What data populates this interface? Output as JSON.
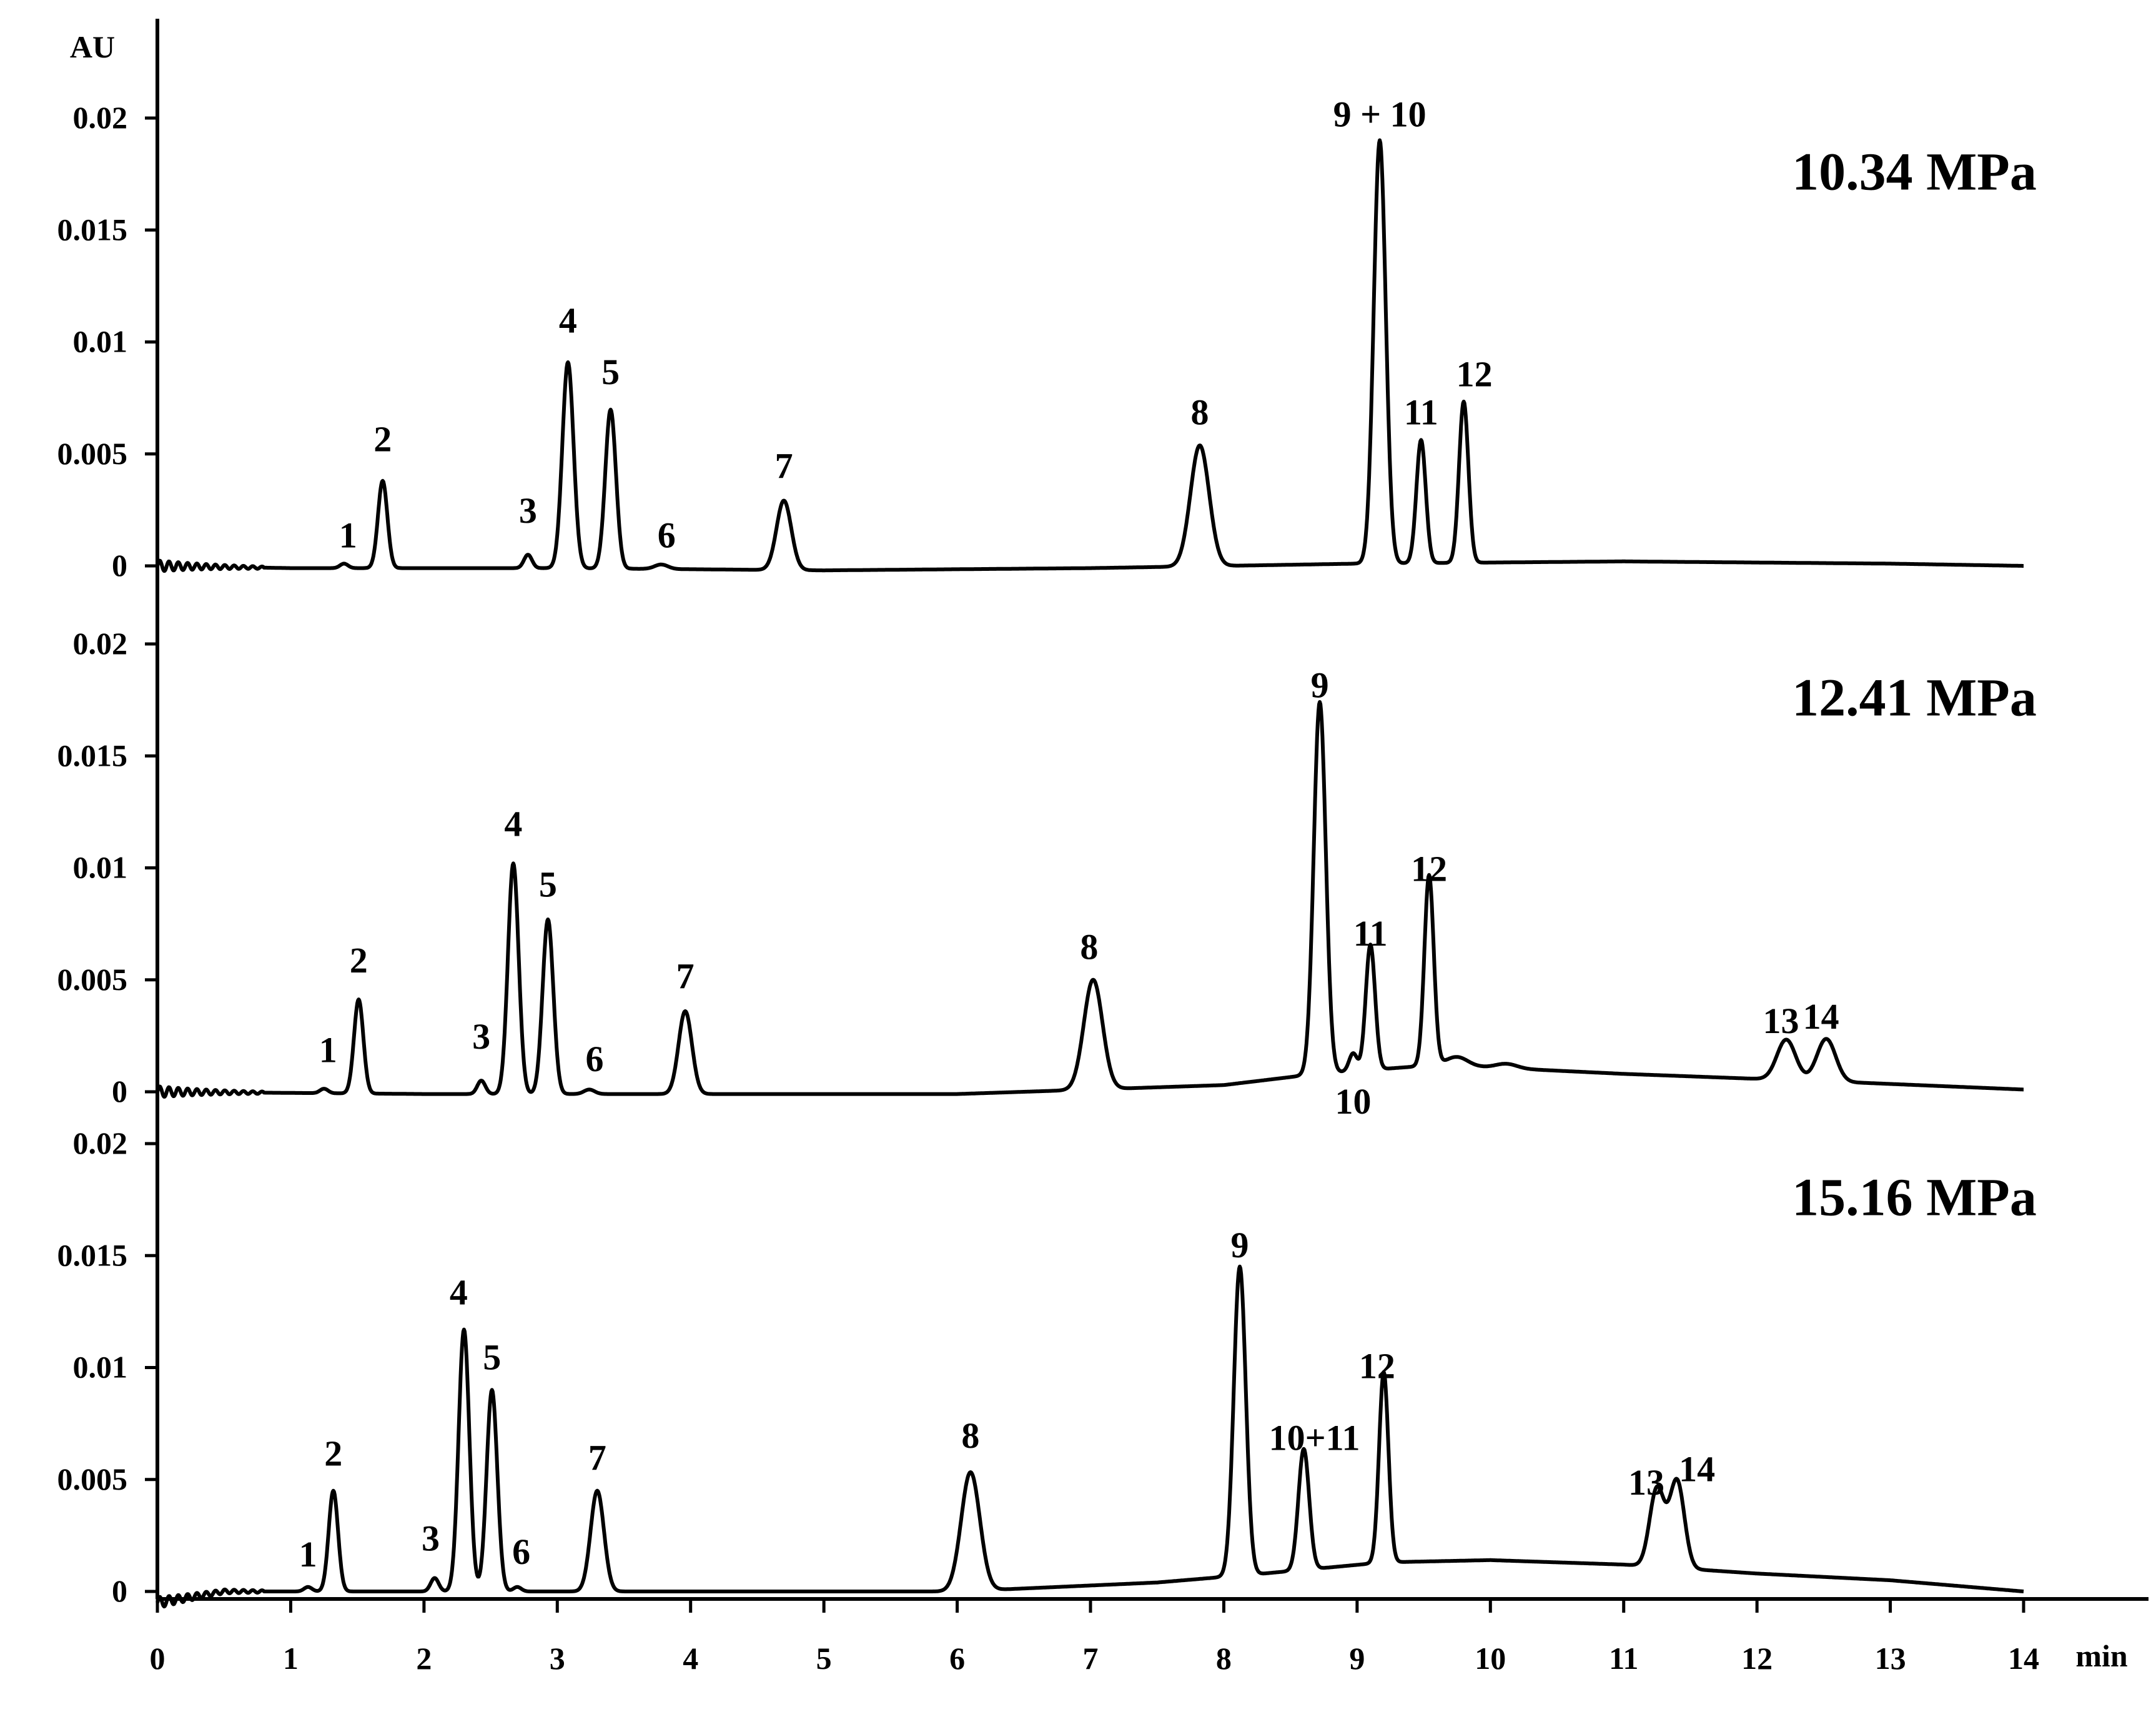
{
  "chart_data": {
    "type": "line",
    "title": "",
    "xlabel": "min",
    "ylabel": "AU",
    "xlim": [
      0,
      14
    ],
    "xticks": [
      "0",
      "1",
      "2",
      "3",
      "4",
      "5",
      "6",
      "7",
      "8",
      "9",
      "10",
      "11",
      "12",
      "13",
      "14"
    ],
    "ylim": [
      0,
      0.02
    ],
    "yticks": [
      "0",
      "0.005",
      "0.01",
      "0.015",
      "0.02"
    ],
    "grid": false,
    "legend": "none",
    "line_color": "#000000",
    "panels": [
      {
        "name": "10.34 MPa",
        "baseline": [
          [
            0,
            0
          ],
          [
            1,
            -0.0001
          ],
          [
            3,
            -0.0001
          ],
          [
            5,
            -0.0002
          ],
          [
            7,
            -0.0001
          ],
          [
            9,
            0.0001
          ],
          [
            11,
            0.0002
          ],
          [
            13,
            0.0001
          ],
          [
            14,
            0
          ]
        ],
        "peaks": [
          {
            "label": "1",
            "x": 1.4,
            "y": 0.0002,
            "w": 0.03,
            "lx": 1.43,
            "ly": 0.0011
          },
          {
            "label": "2",
            "x": 1.69,
            "y": 0.0039,
            "w": 0.035,
            "lx": 1.69,
            "ly": 0.0054
          },
          {
            "label": "3",
            "x": 2.78,
            "y": 0.0006,
            "w": 0.03,
            "lx": 2.78,
            "ly": 0.0022
          },
          {
            "label": "4",
            "x": 3.08,
            "y": 0.0092,
            "w": 0.042,
            "lx": 3.08,
            "ly": 0.0107
          },
          {
            "label": "5",
            "x": 3.4,
            "y": 0.0071,
            "w": 0.04,
            "lx": 3.4,
            "ly": 0.0084
          },
          {
            "label": "6",
            "x": 3.78,
            "y": 0.0002,
            "w": 0.05,
            "lx": 3.82,
            "ly": 0.0011
          },
          {
            "label": "7",
            "x": 4.7,
            "y": 0.0031,
            "w": 0.055,
            "lx": 4.7,
            "ly": 0.0042
          },
          {
            "label": "8",
            "x": 7.82,
            "y": 0.0054,
            "w": 0.07,
            "lx": 7.82,
            "ly": 0.0066
          },
          {
            "label": "9 + 10",
            "x": 9.17,
            "y": 0.0189,
            "w": 0.045,
            "lx": 9.17,
            "ly": 0.0199
          },
          {
            "label": "11",
            "x": 9.48,
            "y": 0.0055,
            "w": 0.035,
            "lx": 9.48,
            "ly": 0.0066
          },
          {
            "label": "12",
            "x": 9.8,
            "y": 0.0072,
            "w": 0.035,
            "lx": 9.88,
            "ly": 0.0083
          }
        ]
      },
      {
        "name": "12.41 MPa",
        "baseline": [
          [
            0,
            0
          ],
          [
            2,
            -0.0001
          ],
          [
            4,
            -0.0001
          ],
          [
            6,
            -0.0001
          ],
          [
            8,
            0.0003
          ],
          [
            8.7,
            0.0008
          ],
          [
            9.6,
            0.0012
          ],
          [
            11,
            0.0008
          ],
          [
            12.8,
            0.0004
          ],
          [
            14,
            0.0001
          ]
        ],
        "peaks": [
          {
            "label": "1",
            "x": 1.25,
            "y": 0.0002,
            "w": 0.03,
            "lx": 1.28,
            "ly": 0.0016
          },
          {
            "label": "2",
            "x": 1.51,
            "y": 0.0042,
            "w": 0.035,
            "lx": 1.51,
            "ly": 0.0056
          },
          {
            "label": "3",
            "x": 2.43,
            "y": 0.0006,
            "w": 0.03,
            "lx": 2.43,
            "ly": 0.0022
          },
          {
            "label": "4",
            "x": 2.67,
            "y": 0.0103,
            "w": 0.04,
            "lx": 2.67,
            "ly": 0.0117
          },
          {
            "label": "5",
            "x": 2.93,
            "y": 0.0078,
            "w": 0.04,
            "lx": 2.93,
            "ly": 0.009
          },
          {
            "label": "6",
            "x": 3.24,
            "y": 0.0002,
            "w": 0.04,
            "lx": 3.28,
            "ly": 0.0012
          },
          {
            "label": "7",
            "x": 3.96,
            "y": 0.0037,
            "w": 0.05,
            "lx": 3.96,
            "ly": 0.0049
          },
          {
            "label": "8",
            "x": 7.02,
            "y": 0.0049,
            "w": 0.07,
            "lx": 6.99,
            "ly": 0.0062
          },
          {
            "label": "9",
            "x": 8.72,
            "y": 0.0166,
            "w": 0.045,
            "lx": 8.72,
            "ly": 0.0179
          },
          {
            "label": "10",
            "x": 8.97,
            "y": 0.0008,
            "w": 0.03,
            "lx": 8.97,
            "ly": -0.0007
          },
          {
            "label": "11",
            "x": 9.1,
            "y": 0.0056,
            "w": 0.035,
            "lx": 9.1,
            "ly": 0.0068
          },
          {
            "label": "12",
            "x": 9.54,
            "y": 0.0085,
            "w": 0.035,
            "lx": 9.54,
            "ly": 0.0097
          },
          {
            "label": "13",
            "x": 12.22,
            "y": 0.0018,
            "w": 0.07,
            "lx": 12.18,
            "ly": 0.0029
          },
          {
            "label": "14",
            "x": 12.52,
            "y": 0.0019,
            "w": 0.07,
            "lx": 12.48,
            "ly": 0.0031
          },
          {
            "label": "",
            "x": 9.75,
            "y": 0.0004,
            "w": 0.08,
            "lx": 0,
            "ly": 0
          },
          {
            "label": "",
            "x": 10.12,
            "y": 0.0002,
            "w": 0.08,
            "lx": 0,
            "ly": 0
          }
        ]
      },
      {
        "name": "15.16 MPa",
        "baseline": [
          [
            0,
            -0.0005
          ],
          [
            0.5,
            0
          ],
          [
            2,
            0
          ],
          [
            4,
            0
          ],
          [
            6,
            0
          ],
          [
            7.5,
            0.0004
          ],
          [
            8.3,
            0.0008
          ],
          [
            9.2,
            0.0013
          ],
          [
            10,
            0.0014
          ],
          [
            11,
            0.0012
          ],
          [
            12,
            0.0008
          ],
          [
            13,
            0.0005
          ],
          [
            14,
            0
          ]
        ],
        "peaks": [
          {
            "label": "1",
            "x": 1.13,
            "y": 0.0002,
            "w": 0.03,
            "lx": 1.13,
            "ly": 0.0014
          },
          {
            "label": "2",
            "x": 1.32,
            "y": 0.0045,
            "w": 0.035,
            "lx": 1.32,
            "ly": 0.0059
          },
          {
            "label": "3",
            "x": 2.08,
            "y": 0.0006,
            "w": 0.03,
            "lx": 2.05,
            "ly": 0.0021
          },
          {
            "label": "4",
            "x": 2.3,
            "y": 0.0117,
            "w": 0.04,
            "lx": 2.26,
            "ly": 0.0131
          },
          {
            "label": "5",
            "x": 2.51,
            "y": 0.009,
            "w": 0.04,
            "lx": 2.51,
            "ly": 0.0102
          },
          {
            "label": "6",
            "x": 2.7,
            "y": 0.0002,
            "w": 0.03,
            "lx": 2.73,
            "ly": 0.0015
          },
          {
            "label": "7",
            "x": 3.3,
            "y": 0.0045,
            "w": 0.05,
            "lx": 3.3,
            "ly": 0.0057
          },
          {
            "label": "8",
            "x": 6.1,
            "y": 0.0053,
            "w": 0.07,
            "lx": 6.1,
            "ly": 0.0067
          },
          {
            "label": "9",
            "x": 8.12,
            "y": 0.0138,
            "w": 0.045,
            "lx": 8.12,
            "ly": 0.0152
          },
          {
            "label": "10+11",
            "x": 8.6,
            "y": 0.0054,
            "w": 0.04,
            "lx": 8.68,
            "ly": 0.0066
          },
          {
            "label": "12",
            "x": 9.2,
            "y": 0.0085,
            "w": 0.035,
            "lx": 9.15,
            "ly": 0.0098
          },
          {
            "label": "13",
            "x": 11.25,
            "y": 0.0035,
            "w": 0.055,
            "lx": 11.17,
            "ly": 0.0046
          },
          {
            "label": "14",
            "x": 11.4,
            "y": 0.0039,
            "w": 0.055,
            "lx": 11.55,
            "ly": 0.0052
          }
        ]
      }
    ]
  }
}
